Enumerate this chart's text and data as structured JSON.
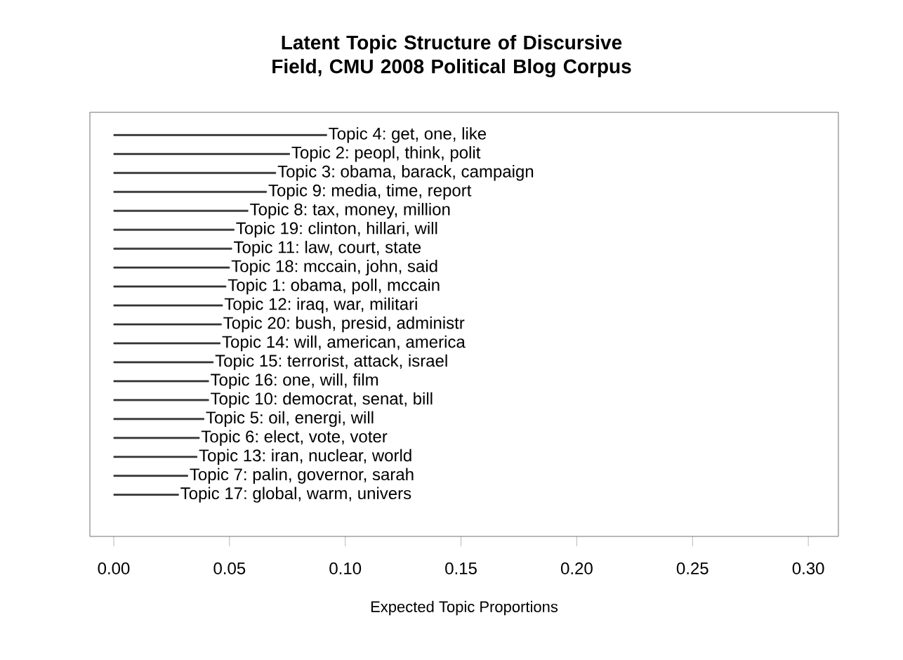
{
  "chart_data": {
    "type": "bar",
    "orientation": "horizontal",
    "title": "Latent Topic Structure of Discursive Field, CMU 2008 Political Blog Corpus",
    "xlabel": "Expected Topic Proportions",
    "categories": [
      "Topic 4: get, one, like",
      "Topic 2: peopl, think, polit",
      "Topic 3: obama, barack, campaign",
      "Topic 9: media, time, report",
      "Topic 8: tax, money, million",
      "Topic 19: clinton, hillari, will",
      "Topic 11: law, court, state",
      "Topic 18: mccain, john, said",
      "Topic 1: obama, poll, mccain",
      "Topic 12: iraq, war, militari",
      "Topic 20: bush, presid, administr",
      "Topic 14: will, american, america",
      "Topic 15: terrorist, attack, israel",
      "Topic 16: one, will, film",
      "Topic 10: democrat, senat, bill",
      "Topic 5: oil, energi, will",
      "Topic 6: elect, vote, voter",
      "Topic 13: iran, nuclear, world",
      "Topic 7: palin, governor, sarah",
      "Topic 17: global, warm, univers"
    ],
    "values": [
      0.092,
      0.076,
      0.07,
      0.066,
      0.058,
      0.052,
      0.051,
      0.05,
      0.0485,
      0.047,
      0.0465,
      0.046,
      0.043,
      0.041,
      0.041,
      0.039,
      0.037,
      0.036,
      0.032,
      0.028
    ],
    "color": "#333333",
    "xlim": [
      -0.0103,
      0.313
    ],
    "xticks": [
      {
        "value": 0,
        "label": "0.00"
      },
      {
        "value": 0.05,
        "label": "0.05"
      },
      {
        "value": 0.1,
        "label": "0.10"
      },
      {
        "value": 0.15,
        "label": "0.15"
      },
      {
        "value": 0.2,
        "label": "0.20"
      },
      {
        "value": 0.25,
        "label": "0.25"
      },
      {
        "value": 0.3,
        "label": "0.30"
      }
    ],
    "grid": false
  }
}
